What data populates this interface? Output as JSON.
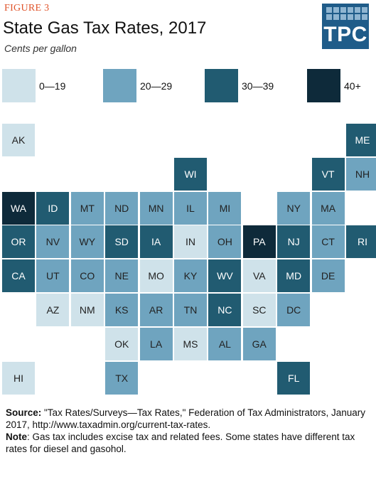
{
  "figure_label": "FIGURE 3",
  "title": "State Gas Tax Rates, 2017",
  "subtitle": "Cents per gallon",
  "logo_text": "TPC",
  "legend": [
    {
      "label": "0—19",
      "color": "#cfe2ea"
    },
    {
      "label": "20—29",
      "color": "#6fa4bf"
    },
    {
      "label": "30—39",
      "color": "#215b71"
    },
    {
      "label": "40+",
      "color": "#0e2a3a"
    }
  ],
  "states": [
    {
      "abbr": "AK",
      "bin": 0,
      "col": 0,
      "row": 0
    },
    {
      "abbr": "ME",
      "bin": 2,
      "col": 10,
      "row": 0
    },
    {
      "abbr": "WI",
      "bin": 2,
      "col": 5,
      "row": 1
    },
    {
      "abbr": "VT",
      "bin": 2,
      "col": 9,
      "row": 1
    },
    {
      "abbr": "NH",
      "bin": 1,
      "col": 10,
      "row": 1
    },
    {
      "abbr": "WA",
      "bin": 3,
      "col": 0,
      "row": 2
    },
    {
      "abbr": "ID",
      "bin": 2,
      "col": 1,
      "row": 2
    },
    {
      "abbr": "MT",
      "bin": 1,
      "col": 2,
      "row": 2
    },
    {
      "abbr": "ND",
      "bin": 1,
      "col": 3,
      "row": 2
    },
    {
      "abbr": "MN",
      "bin": 1,
      "col": 4,
      "row": 2
    },
    {
      "abbr": "IL",
      "bin": 1,
      "col": 5,
      "row": 2
    },
    {
      "abbr": "MI",
      "bin": 1,
      "col": 6,
      "row": 2
    },
    {
      "abbr": "NY",
      "bin": 1,
      "col": 8,
      "row": 2
    },
    {
      "abbr": "MA",
      "bin": 1,
      "col": 9,
      "row": 2
    },
    {
      "abbr": "OR",
      "bin": 2,
      "col": 0,
      "row": 3
    },
    {
      "abbr": "NV",
      "bin": 1,
      "col": 1,
      "row": 3
    },
    {
      "abbr": "WY",
      "bin": 1,
      "col": 2,
      "row": 3
    },
    {
      "abbr": "SD",
      "bin": 2,
      "col": 3,
      "row": 3
    },
    {
      "abbr": "IA",
      "bin": 2,
      "col": 4,
      "row": 3
    },
    {
      "abbr": "IN",
      "bin": 0,
      "col": 5,
      "row": 3
    },
    {
      "abbr": "OH",
      "bin": 1,
      "col": 6,
      "row": 3
    },
    {
      "abbr": "PA",
      "bin": 3,
      "col": 7,
      "row": 3
    },
    {
      "abbr": "NJ",
      "bin": 2,
      "col": 8,
      "row": 3
    },
    {
      "abbr": "CT",
      "bin": 1,
      "col": 9,
      "row": 3
    },
    {
      "abbr": "RI",
      "bin": 2,
      "col": 10,
      "row": 3
    },
    {
      "abbr": "CA",
      "bin": 2,
      "col": 0,
      "row": 4
    },
    {
      "abbr": "UT",
      "bin": 1,
      "col": 1,
      "row": 4
    },
    {
      "abbr": "CO",
      "bin": 1,
      "col": 2,
      "row": 4
    },
    {
      "abbr": "NE",
      "bin": 1,
      "col": 3,
      "row": 4
    },
    {
      "abbr": "MO",
      "bin": 0,
      "col": 4,
      "row": 4
    },
    {
      "abbr": "KY",
      "bin": 1,
      "col": 5,
      "row": 4
    },
    {
      "abbr": "WV",
      "bin": 2,
      "col": 6,
      "row": 4
    },
    {
      "abbr": "VA",
      "bin": 0,
      "col": 7,
      "row": 4
    },
    {
      "abbr": "MD",
      "bin": 2,
      "col": 8,
      "row": 4
    },
    {
      "abbr": "DE",
      "bin": 1,
      "col": 9,
      "row": 4
    },
    {
      "abbr": "AZ",
      "bin": 0,
      "col": 1,
      "row": 5
    },
    {
      "abbr": "NM",
      "bin": 0,
      "col": 2,
      "row": 5
    },
    {
      "abbr": "KS",
      "bin": 1,
      "col": 3,
      "row": 5
    },
    {
      "abbr": "AR",
      "bin": 1,
      "col": 4,
      "row": 5
    },
    {
      "abbr": "TN",
      "bin": 1,
      "col": 5,
      "row": 5
    },
    {
      "abbr": "NC",
      "bin": 2,
      "col": 6,
      "row": 5
    },
    {
      "abbr": "SC",
      "bin": 0,
      "col": 7,
      "row": 5
    },
    {
      "abbr": "DC",
      "bin": 1,
      "col": 8,
      "row": 5
    },
    {
      "abbr": "OK",
      "bin": 0,
      "col": 3,
      "row": 6
    },
    {
      "abbr": "LA",
      "bin": 1,
      "col": 4,
      "row": 6
    },
    {
      "abbr": "MS",
      "bin": 0,
      "col": 5,
      "row": 6
    },
    {
      "abbr": "AL",
      "bin": 1,
      "col": 6,
      "row": 6
    },
    {
      "abbr": "GA",
      "bin": 1,
      "col": 7,
      "row": 6
    },
    {
      "abbr": "HI",
      "bin": 0,
      "col": 0,
      "row": 7
    },
    {
      "abbr": "TX",
      "bin": 1,
      "col": 3,
      "row": 7
    },
    {
      "abbr": "FL",
      "bin": 2,
      "col": 8,
      "row": 7
    }
  ],
  "source_label": "Source:",
  "source_text": " \"Tax Rates/Surveys—Tax Rates,\" Federation of Tax Administrators, January 2017, http://www.taxadmin.org/current-tax-rates.",
  "note_label": "Note",
  "note_text": ": Gas tax includes excise tax and related fees. Some states have different  tax rates for diesel and gasohol."
}
